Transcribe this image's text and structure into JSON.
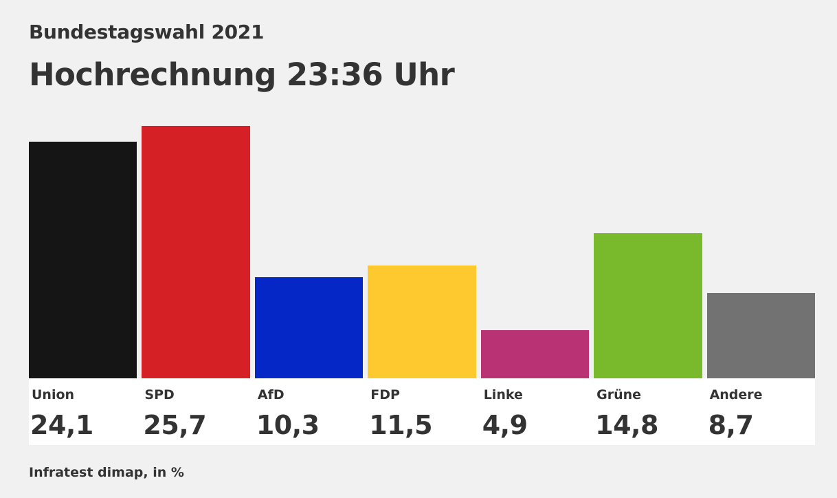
{
  "chart_data": {
    "type": "bar",
    "subtitle": "Bundestagswahl 2021",
    "title": "Hochrechnung 23:36 Uhr",
    "categories": [
      "Union",
      "SPD",
      "AfD",
      "FDP",
      "Linke",
      "Grüne",
      "Andere"
    ],
    "values": [
      24.1,
      25.7,
      10.3,
      11.5,
      4.9,
      14.8,
      8.7
    ],
    "value_labels": [
      "24,1",
      "25,7",
      "10,3",
      "11,5",
      "4,9",
      "14,8",
      "8,7"
    ],
    "colors": [
      "#151515",
      "#d52125",
      "#0527c6",
      "#fdc92f",
      "#b93273",
      "#78ba2c",
      "#727272"
    ],
    "unit": "%",
    "source": "Infratest dimap, in %",
    "ylim": [
      0,
      26.6
    ]
  }
}
